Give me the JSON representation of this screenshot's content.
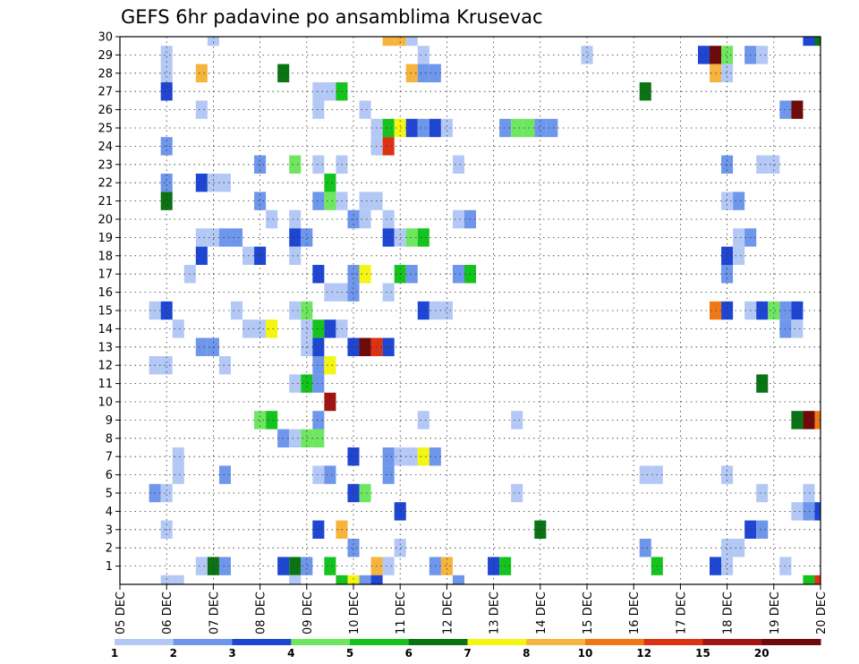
{
  "chart_data": {
    "type": "heatmap",
    "title": "GEFS 6hr padavine po ansamblima Krusevac",
    "xlabel": "",
    "ylabel": "",
    "x_tick_labels": [
      "05 DEC",
      "06 DEC",
      "07 DEC",
      "08 DEC",
      "09 DEC",
      "10 DEC",
      "11 DEC",
      "12 DEC",
      "13 DEC",
      "14 DEC",
      "15 DEC",
      "16 DEC",
      "17 DEC",
      "18 DEC",
      "19 DEC",
      "20 DEC"
    ],
    "y_tick_labels": [
      "1",
      "2",
      "3",
      "4",
      "5",
      "6",
      "7",
      "8",
      "9",
      "10",
      "11",
      "12",
      "13",
      "14",
      "15",
      "16",
      "17",
      "18",
      "19",
      "20",
      "21",
      "22",
      "23",
      "24",
      "25",
      "26",
      "27",
      "28",
      "29",
      "30"
    ],
    "x_range_days": [
      0,
      15
    ],
    "y_range": [
      0,
      30
    ],
    "grid": true,
    "legend_position": "bottom",
    "color_classes": [
      {
        "label": "1",
        "color": "#b4c8f5"
      },
      {
        "label": "2",
        "color": "#6e96eb"
      },
      {
        "label": "3",
        "color": "#1e46d2"
      },
      {
        "label": "4",
        "color": "#6ee660"
      },
      {
        "label": "5",
        "color": "#14c31e"
      },
      {
        "label": "6",
        "color": "#0a7314"
      },
      {
        "label": "7",
        "color": "#f5f514"
      },
      {
        "label": "8",
        "color": "#f5b43c"
      },
      {
        "label": "10",
        "color": "#f07814"
      },
      {
        "label": "12",
        "color": "#dc3214"
      },
      {
        "label": "15",
        "color": "#a01414"
      },
      {
        "label": "20",
        "color": "#6e0a0a"
      }
    ],
    "cells_note": "each cell: [time_step (6h steps from 05 DEC 00Z), member, color_class_index]",
    "cells": [
      [
        8,
        30,
        0
      ],
      [
        23,
        30,
        7
      ],
      [
        24,
        30,
        7
      ],
      [
        25,
        30,
        0
      ],
      [
        59,
        30,
        2
      ],
      [
        60,
        30,
        5
      ],
      [
        4,
        29,
        0
      ],
      [
        26,
        29,
        0
      ],
      [
        40,
        29,
        0
      ],
      [
        50,
        29,
        2
      ],
      [
        51,
        29,
        11
      ],
      [
        52,
        29,
        3
      ],
      [
        54,
        29,
        1
      ],
      [
        55,
        29,
        0
      ],
      [
        4,
        28,
        0
      ],
      [
        7,
        28,
        7
      ],
      [
        14,
        28,
        5
      ],
      [
        25,
        28,
        7
      ],
      [
        26,
        28,
        1
      ],
      [
        27,
        28,
        1
      ],
      [
        51,
        28,
        7
      ],
      [
        52,
        28,
        0
      ],
      [
        4,
        27,
        2
      ],
      [
        17,
        27,
        0
      ],
      [
        18,
        27,
        0
      ],
      [
        19,
        27,
        4
      ],
      [
        45,
        27,
        5
      ],
      [
        7,
        26,
        0
      ],
      [
        17,
        26,
        0
      ],
      [
        21,
        26,
        0
      ],
      [
        57,
        26,
        1
      ],
      [
        58,
        26,
        11
      ],
      [
        22,
        25,
        0
      ],
      [
        23,
        25,
        4
      ],
      [
        24,
        25,
        6
      ],
      [
        25,
        25,
        2
      ],
      [
        26,
        25,
        1
      ],
      [
        27,
        25,
        2
      ],
      [
        28,
        25,
        0
      ],
      [
        33,
        25,
        1
      ],
      [
        34,
        25,
        3
      ],
      [
        35,
        25,
        3
      ],
      [
        36,
        25,
        1
      ],
      [
        37,
        25,
        1
      ],
      [
        4,
        24,
        1
      ],
      [
        22,
        24,
        0
      ],
      [
        23,
        24,
        9
      ],
      [
        12,
        23,
        1
      ],
      [
        15,
        23,
        3
      ],
      [
        17,
        23,
        0
      ],
      [
        19,
        23,
        0
      ],
      [
        29,
        23,
        0
      ],
      [
        52,
        23,
        1
      ],
      [
        55,
        23,
        0
      ],
      [
        56,
        23,
        0
      ],
      [
        4,
        22,
        1
      ],
      [
        7,
        22,
        2
      ],
      [
        8,
        22,
        0
      ],
      [
        9,
        22,
        0
      ],
      [
        18,
        22,
        4
      ],
      [
        4,
        21,
        5
      ],
      [
        12,
        21,
        1
      ],
      [
        17,
        21,
        1
      ],
      [
        18,
        21,
        3
      ],
      [
        19,
        21,
        0
      ],
      [
        21,
        21,
        0
      ],
      [
        22,
        21,
        0
      ],
      [
        52,
        21,
        0
      ],
      [
        53,
        21,
        1
      ],
      [
        13,
        20,
        0
      ],
      [
        15,
        20,
        0
      ],
      [
        20,
        20,
        1
      ],
      [
        21,
        20,
        0
      ],
      [
        23,
        20,
        0
      ],
      [
        29,
        20,
        0
      ],
      [
        30,
        20,
        1
      ],
      [
        7,
        19,
        0
      ],
      [
        8,
        19,
        0
      ],
      [
        9,
        19,
        1
      ],
      [
        10,
        19,
        1
      ],
      [
        15,
        19,
        2
      ],
      [
        16,
        19,
        1
      ],
      [
        23,
        19,
        2
      ],
      [
        24,
        19,
        0
      ],
      [
        25,
        19,
        3
      ],
      [
        26,
        19,
        4
      ],
      [
        53,
        19,
        0
      ],
      [
        54,
        19,
        1
      ],
      [
        7,
        18,
        2
      ],
      [
        11,
        18,
        0
      ],
      [
        12,
        18,
        2
      ],
      [
        15,
        18,
        0
      ],
      [
        52,
        18,
        2
      ],
      [
        53,
        18,
        0
      ],
      [
        6,
        17,
        0
      ],
      [
        17,
        17,
        2
      ],
      [
        20,
        17,
        1
      ],
      [
        21,
        17,
        6
      ],
      [
        24,
        17,
        4
      ],
      [
        25,
        17,
        1
      ],
      [
        29,
        17,
        1
      ],
      [
        30,
        17,
        4
      ],
      [
        52,
        17,
        1
      ],
      [
        18,
        16,
        0
      ],
      [
        19,
        16,
        0
      ],
      [
        20,
        16,
        1
      ],
      [
        23,
        16,
        0
      ],
      [
        3,
        15,
        0
      ],
      [
        4,
        15,
        2
      ],
      [
        10,
        15,
        0
      ],
      [
        15,
        15,
        0
      ],
      [
        16,
        15,
        3
      ],
      [
        26,
        15,
        2
      ],
      [
        27,
        15,
        0
      ],
      [
        28,
        15,
        0
      ],
      [
        51,
        15,
        8
      ],
      [
        52,
        15,
        2
      ],
      [
        54,
        15,
        0
      ],
      [
        55,
        15,
        2
      ],
      [
        56,
        15,
        3
      ],
      [
        57,
        15,
        1
      ],
      [
        58,
        15,
        2
      ],
      [
        5,
        14,
        0
      ],
      [
        11,
        14,
        0
      ],
      [
        12,
        14,
        0
      ],
      [
        13,
        14,
        6
      ],
      [
        16,
        14,
        0
      ],
      [
        17,
        14,
        4
      ],
      [
        18,
        14,
        2
      ],
      [
        19,
        14,
        0
      ],
      [
        57,
        14,
        1
      ],
      [
        58,
        14,
        0
      ],
      [
        7,
        13,
        1
      ],
      [
        8,
        13,
        1
      ],
      [
        16,
        13,
        0
      ],
      [
        17,
        13,
        2
      ],
      [
        20,
        13,
        2
      ],
      [
        21,
        13,
        11
      ],
      [
        22,
        13,
        9
      ],
      [
        23,
        13,
        2
      ],
      [
        3,
        12,
        0
      ],
      [
        4,
        12,
        0
      ],
      [
        9,
        12,
        0
      ],
      [
        17,
        12,
        1
      ],
      [
        18,
        12,
        6
      ],
      [
        15,
        11,
        0
      ],
      [
        16,
        11,
        4
      ],
      [
        17,
        11,
        1
      ],
      [
        55,
        11,
        5
      ],
      [
        18,
        10,
        10
      ],
      [
        12,
        9,
        3
      ],
      [
        13,
        9,
        4
      ],
      [
        17,
        9,
        1
      ],
      [
        26,
        9,
        0
      ],
      [
        34,
        9,
        0
      ],
      [
        58,
        9,
        5
      ],
      [
        59,
        9,
        11
      ],
      [
        60,
        9,
        8
      ],
      [
        14,
        8,
        1
      ],
      [
        15,
        8,
        0
      ],
      [
        16,
        8,
        3
      ],
      [
        17,
        8,
        3
      ],
      [
        5,
        7,
        0
      ],
      [
        20,
        7,
        2
      ],
      [
        23,
        7,
        1
      ],
      [
        24,
        7,
        0
      ],
      [
        25,
        7,
        0
      ],
      [
        26,
        7,
        6
      ],
      [
        27,
        7,
        1
      ],
      [
        5,
        6,
        0
      ],
      [
        9,
        6,
        1
      ],
      [
        17,
        6,
        0
      ],
      [
        18,
        6,
        1
      ],
      [
        23,
        6,
        1
      ],
      [
        45,
        6,
        0
      ],
      [
        46,
        6,
        0
      ],
      [
        52,
        6,
        0
      ],
      [
        3,
        5,
        1
      ],
      [
        4,
        5,
        0
      ],
      [
        20,
        5,
        2
      ],
      [
        21,
        5,
        3
      ],
      [
        34,
        5,
        0
      ],
      [
        55,
        5,
        0
      ],
      [
        59,
        5,
        0
      ],
      [
        24,
        4,
        2
      ],
      [
        58,
        4,
        0
      ],
      [
        59,
        4,
        1
      ],
      [
        60,
        4,
        2
      ],
      [
        4,
        3,
        0
      ],
      [
        17,
        3,
        2
      ],
      [
        19,
        3,
        7
      ],
      [
        36,
        3,
        5
      ],
      [
        54,
        3,
        2
      ],
      [
        55,
        3,
        1
      ],
      [
        20,
        2,
        1
      ],
      [
        24,
        2,
        0
      ],
      [
        45,
        2,
        1
      ],
      [
        52,
        2,
        0
      ],
      [
        53,
        2,
        0
      ],
      [
        7,
        1,
        0
      ],
      [
        8,
        1,
        5
      ],
      [
        9,
        1,
        1
      ],
      [
        14,
        1,
        2
      ],
      [
        15,
        1,
        5
      ],
      [
        16,
        1,
        1
      ],
      [
        18,
        1,
        4
      ],
      [
        22,
        1,
        7
      ],
      [
        23,
        1,
        0
      ],
      [
        27,
        1,
        1
      ],
      [
        28,
        1,
        7
      ],
      [
        32,
        1,
        2
      ],
      [
        33,
        1,
        4
      ],
      [
        46,
        1,
        4
      ],
      [
        51,
        1,
        2
      ],
      [
        52,
        1,
        0
      ],
      [
        57,
        1,
        0
      ],
      [
        4,
        0,
        0
      ],
      [
        5,
        0,
        0
      ],
      [
        15,
        0,
        0
      ],
      [
        19,
        0,
        4
      ],
      [
        20,
        0,
        6
      ],
      [
        21,
        0,
        1
      ],
      [
        22,
        0,
        2
      ],
      [
        29,
        0,
        1
      ],
      [
        59,
        0,
        4
      ],
      [
        60,
        0,
        9
      ]
    ]
  }
}
